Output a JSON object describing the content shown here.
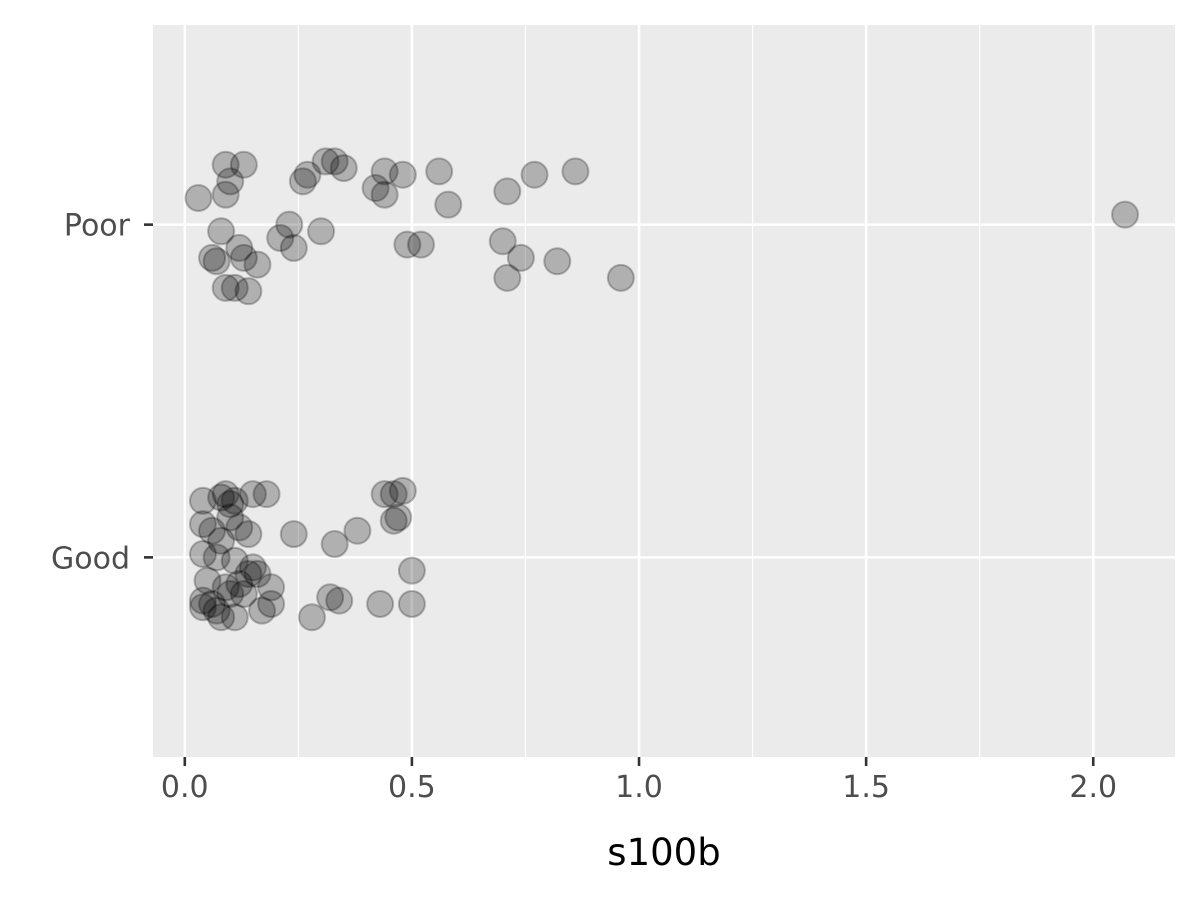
{
  "chart_data": {
    "type": "scatter",
    "xlabel": "s100b",
    "ylabel": "",
    "categories": [
      "Good",
      "Poor"
    ],
    "xlim": [
      -0.07,
      2.18
    ],
    "ylim": [
      0.4,
      2.6
    ],
    "x_ticks": [
      "0.0",
      "0.5",
      "1.0",
      "1.5",
      "2.0"
    ],
    "x_tick_values": [
      0,
      0.5,
      1,
      1.5,
      2
    ],
    "grid": true,
    "point_fill": "#000000",
    "point_opacity": 0.25,
    "panel_color": "#ebebeb",
    "grid_color": "#ffffff",
    "series": [
      {
        "points": [
          {
            "x": 0.03,
            "y": 2.08
          },
          {
            "x": 0.09,
            "y": 2.18
          },
          {
            "x": 0.1,
            "y": 2.13
          },
          {
            "x": 0.13,
            "y": 2.18
          },
          {
            "x": 0.09,
            "y": 2.09
          },
          {
            "x": 0.27,
            "y": 2.15
          },
          {
            "x": 0.26,
            "y": 2.13
          },
          {
            "x": 0.31,
            "y": 2.19
          },
          {
            "x": 0.33,
            "y": 2.19
          },
          {
            "x": 0.35,
            "y": 2.17
          },
          {
            "x": 0.42,
            "y": 2.11
          },
          {
            "x": 0.44,
            "y": 2.16
          },
          {
            "x": 0.48,
            "y": 2.15
          },
          {
            "x": 0.44,
            "y": 2.09
          },
          {
            "x": 0.56,
            "y": 2.16
          },
          {
            "x": 0.58,
            "y": 2.06
          },
          {
            "x": 0.71,
            "y": 2.1
          },
          {
            "x": 0.77,
            "y": 2.15
          },
          {
            "x": 0.86,
            "y": 2.16
          },
          {
            "x": 0.23,
            "y": 2.0
          },
          {
            "x": 0.21,
            "y": 1.96
          },
          {
            "x": 0.3,
            "y": 1.98
          },
          {
            "x": 0.08,
            "y": 1.98
          },
          {
            "x": 0.24,
            "y": 1.93
          },
          {
            "x": 0.49,
            "y": 1.94
          },
          {
            "x": 0.52,
            "y": 1.94
          },
          {
            "x": 0.7,
            "y": 1.95
          },
          {
            "x": 0.74,
            "y": 1.9
          },
          {
            "x": 0.82,
            "y": 1.89
          },
          {
            "x": 0.12,
            "y": 1.93
          },
          {
            "x": 0.13,
            "y": 1.9
          },
          {
            "x": 0.06,
            "y": 1.9
          },
          {
            "x": 0.07,
            "y": 1.89
          },
          {
            "x": 0.16,
            "y": 1.88
          },
          {
            "x": 0.09,
            "y": 1.81
          },
          {
            "x": 0.11,
            "y": 1.81
          },
          {
            "x": 0.14,
            "y": 1.8
          },
          {
            "x": 0.71,
            "y": 1.84
          },
          {
            "x": 0.96,
            "y": 1.84
          },
          {
            "x": 2.07,
            "y": 2.03
          }
        ]
      },
      {
        "points": [
          {
            "x": 0.04,
            "y": 1.17
          },
          {
            "x": 0.08,
            "y": 1.18
          },
          {
            "x": 0.09,
            "y": 1.19
          },
          {
            "x": 0.1,
            "y": 1.16
          },
          {
            "x": 0.11,
            "y": 1.17
          },
          {
            "x": 0.15,
            "y": 1.19
          },
          {
            "x": 0.18,
            "y": 1.19
          },
          {
            "x": 0.44,
            "y": 1.19
          },
          {
            "x": 0.46,
            "y": 1.19
          },
          {
            "x": 0.48,
            "y": 1.2
          },
          {
            "x": 0.04,
            "y": 1.1
          },
          {
            "x": 0.06,
            "y": 1.08
          },
          {
            "x": 0.08,
            "y": 1.05
          },
          {
            "x": 0.12,
            "y": 1.09
          },
          {
            "x": 0.14,
            "y": 1.07
          },
          {
            "x": 0.1,
            "y": 1.12
          },
          {
            "x": 0.24,
            "y": 1.07
          },
          {
            "x": 0.38,
            "y": 1.08
          },
          {
            "x": 0.46,
            "y": 1.11
          },
          {
            "x": 0.47,
            "y": 1.12
          },
          {
            "x": 0.33,
            "y": 1.04
          },
          {
            "x": 0.04,
            "y": 1.01
          },
          {
            "x": 0.07,
            "y": 1.0
          },
          {
            "x": 0.11,
            "y": 0.99
          },
          {
            "x": 0.15,
            "y": 0.97
          },
          {
            "x": 0.16,
            "y": 0.95
          },
          {
            "x": 0.14,
            "y": 0.95
          },
          {
            "x": 0.5,
            "y": 0.96
          },
          {
            "x": 0.05,
            "y": 0.93
          },
          {
            "x": 0.09,
            "y": 0.91
          },
          {
            "x": 0.12,
            "y": 0.92
          },
          {
            "x": 0.19,
            "y": 0.91
          },
          {
            "x": 0.13,
            "y": 0.89
          },
          {
            "x": 0.32,
            "y": 0.88
          },
          {
            "x": 0.34,
            "y": 0.87
          },
          {
            "x": 0.43,
            "y": 0.86
          },
          {
            "x": 0.5,
            "y": 0.86
          },
          {
            "x": 0.04,
            "y": 0.87
          },
          {
            "x": 0.04,
            "y": 0.85
          },
          {
            "x": 0.07,
            "y": 0.84
          },
          {
            "x": 0.08,
            "y": 0.82
          },
          {
            "x": 0.11,
            "y": 0.82
          },
          {
            "x": 0.17,
            "y": 0.84
          },
          {
            "x": 0.19,
            "y": 0.86
          },
          {
            "x": 0.28,
            "y": 0.82
          },
          {
            "x": 0.06,
            "y": 0.86
          },
          {
            "x": 0.1,
            "y": 0.89
          }
        ]
      }
    ]
  }
}
